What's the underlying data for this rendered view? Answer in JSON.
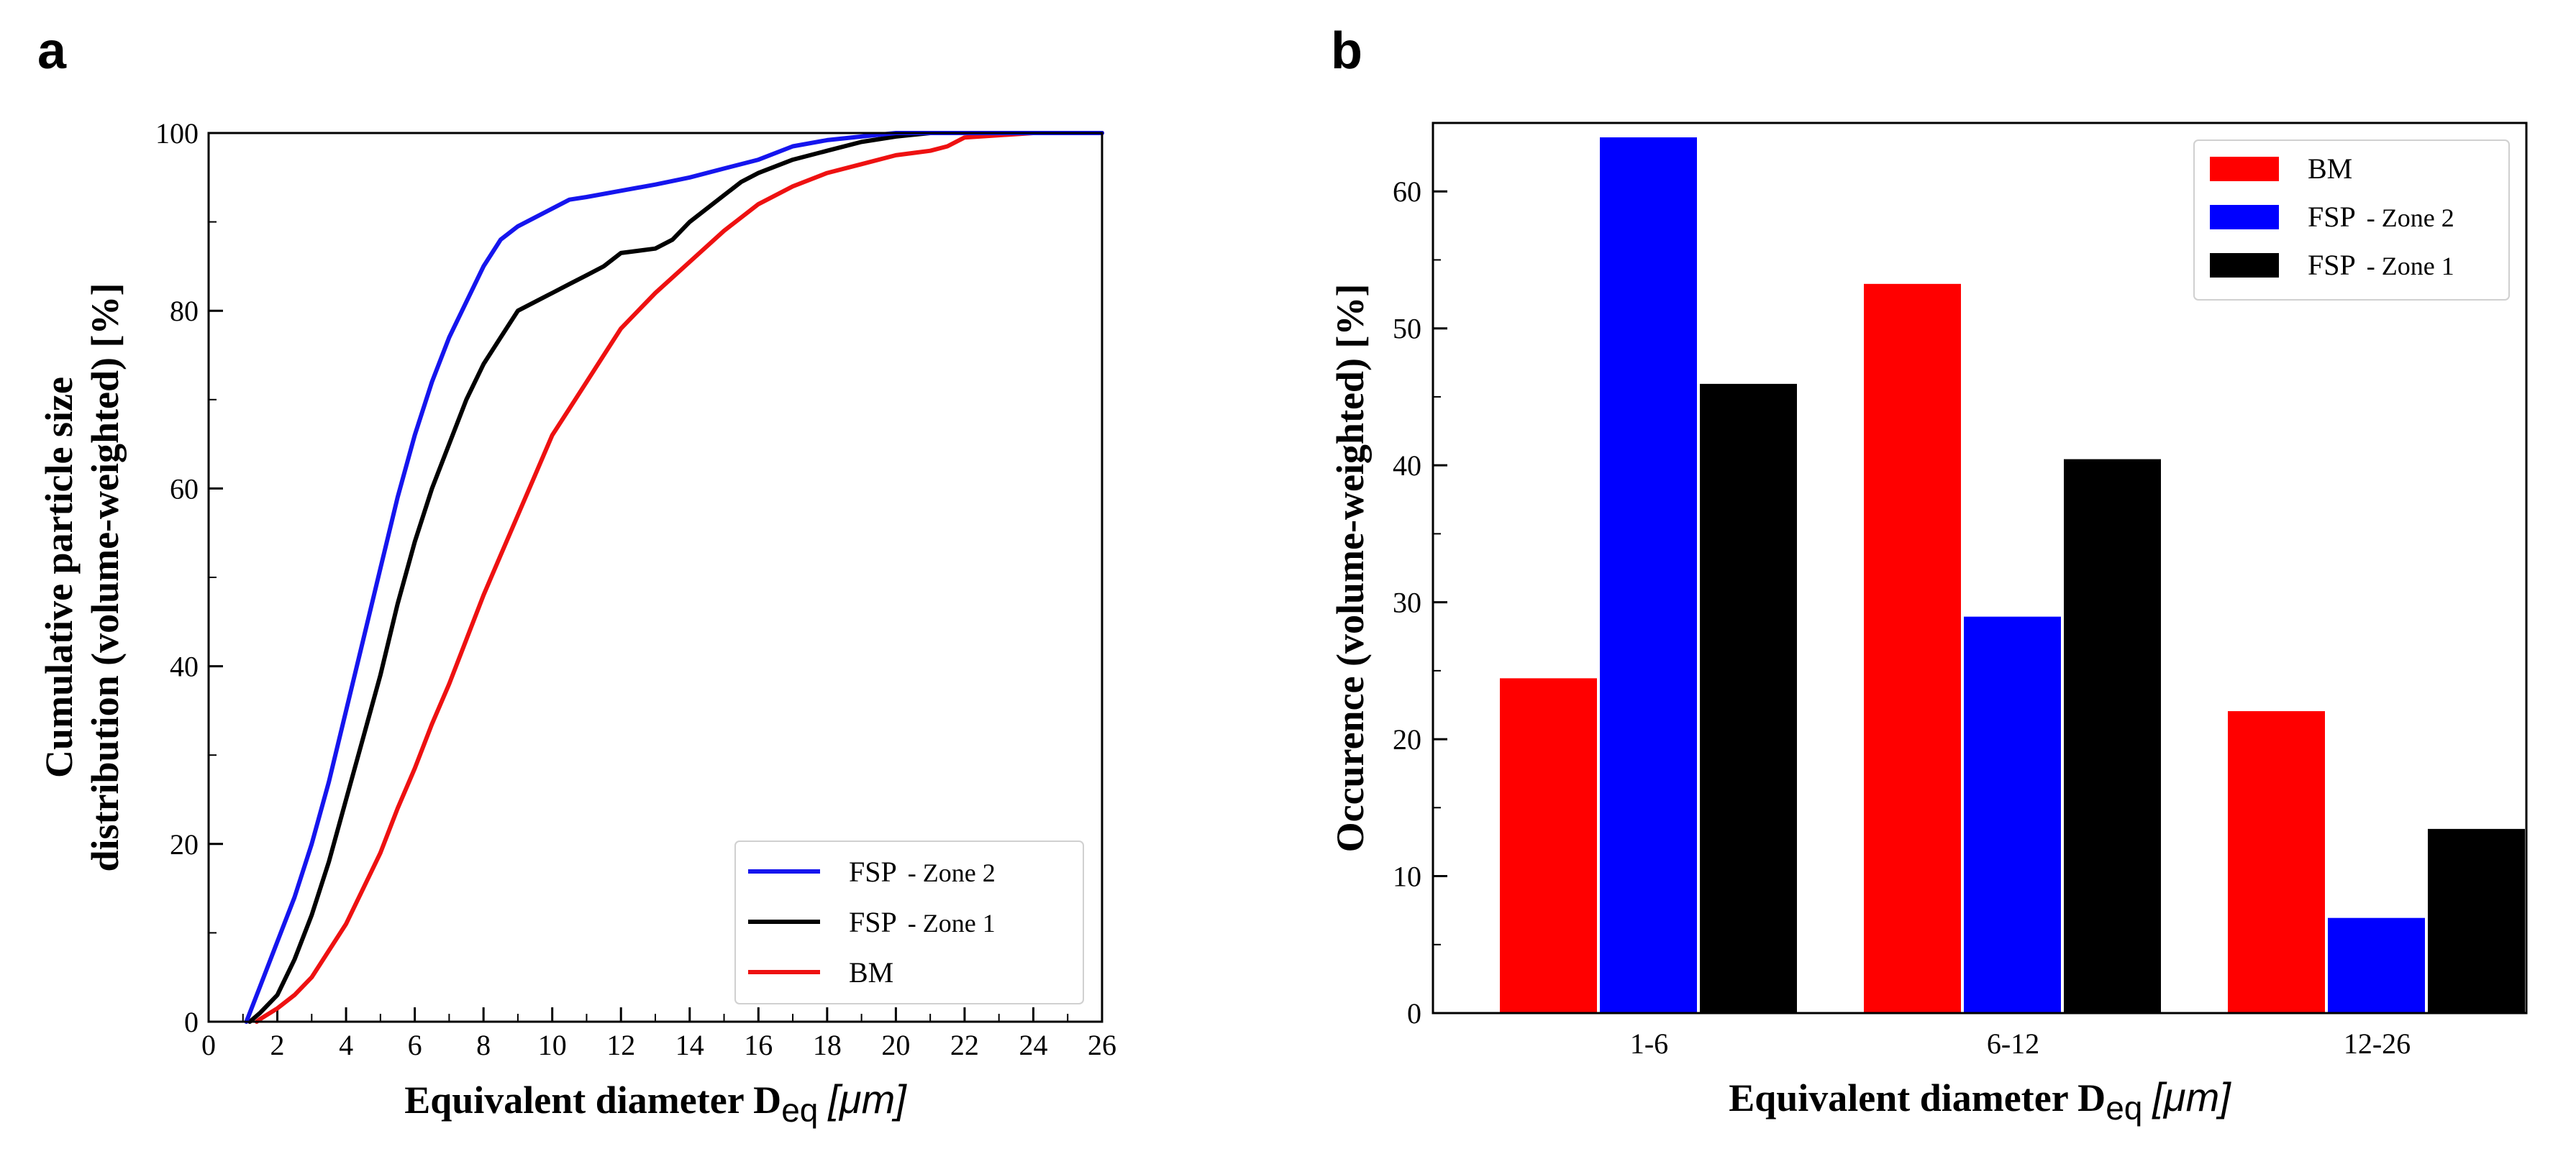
{
  "panel_a_label": "a",
  "panel_b_label": "b",
  "chart_data": [
    {
      "type": "line",
      "ylabel_line1": "Cumulative particle size",
      "ylabel_line2": "distribution (volume-weighted) [%]",
      "xlabel_main": "Equivalent diameter D",
      "xlabel_sub": "eq",
      "xlabel_unit": "[μm]",
      "xlim": [
        0,
        26
      ],
      "ylim": [
        0,
        100
      ],
      "x_ticks": [
        0,
        2,
        4,
        6,
        8,
        10,
        12,
        14,
        16,
        18,
        20,
        22,
        24,
        26
      ],
      "y_ticks": [
        0,
        20,
        40,
        60,
        80,
        100
      ],
      "legend_position": "bottom-right",
      "series": [
        {
          "name": "FSP",
          "name_suffix": " - Zone 2",
          "color": "#1515ee",
          "x": [
            1.1,
            1.5,
            2,
            2.5,
            3,
            3.5,
            4,
            4.5,
            5,
            5.5,
            6,
            6.5,
            7,
            7.5,
            8,
            8.5,
            9,
            9.5,
            10,
            10.5,
            11,
            12,
            13,
            14,
            15,
            16,
            17,
            18,
            19,
            20,
            22,
            26
          ],
          "y": [
            0,
            4,
            9,
            14,
            20,
            27,
            35,
            43,
            51,
            59,
            66,
            72,
            77,
            81,
            85,
            88,
            89.5,
            90.5,
            91.5,
            92.5,
            92.8,
            93.5,
            94.2,
            95,
            96,
            97,
            98.5,
            99.2,
            99.6,
            100,
            100,
            100
          ]
        },
        {
          "name": "FSP",
          "name_suffix": " - Zone 1",
          "color": "#000000",
          "x": [
            1.2,
            1.5,
            2,
            2.5,
            3,
            3.5,
            4,
            4.5,
            5,
            5.5,
            6,
            6.5,
            7,
            7.5,
            8,
            8.5,
            9,
            9.5,
            10,
            10.5,
            11,
            11.5,
            12,
            13,
            13.5,
            14,
            15,
            15.5,
            16,
            17,
            18,
            19,
            20,
            21,
            22,
            26
          ],
          "y": [
            0,
            1,
            3,
            7,
            12,
            18,
            25,
            32,
            39,
            47,
            54,
            60,
            65,
            70,
            74,
            77,
            80,
            81,
            82,
            83,
            84,
            85,
            86.5,
            87,
            88,
            90,
            93,
            94.5,
            95.5,
            97,
            98,
            99,
            99.6,
            100,
            100,
            100
          ]
        },
        {
          "name": "BM",
          "name_suffix": "",
          "color": "#ee1111",
          "x": [
            1.4,
            1.5,
            2,
            2.5,
            3,
            3.5,
            4,
            4.5,
            5,
            5.5,
            6,
            6.5,
            7,
            7.5,
            8,
            8.5,
            9,
            9.5,
            10,
            10.5,
            11,
            11.5,
            12,
            12.5,
            13,
            14,
            15,
            16,
            17,
            18,
            19,
            20,
            21,
            21.5,
            22,
            24,
            26
          ],
          "y": [
            0,
            0.3,
            1.5,
            3,
            5,
            8,
            11,
            15,
            19,
            24,
            28.5,
            33.5,
            38,
            43,
            48,
            52.5,
            57,
            61.5,
            66,
            69,
            72,
            75,
            78,
            80,
            82,
            85.5,
            89,
            92,
            94,
            95.5,
            96.5,
            97.5,
            98,
            98.5,
            99.5,
            100,
            100
          ]
        }
      ]
    },
    {
      "type": "bar",
      "ylabel": "Occurence (volume-weighted) [%]",
      "xlabel_main": "Equivalent diameter D",
      "xlabel_sub": "eq",
      "xlabel_unit": "[μm]",
      "categories": [
        "1-6",
        "6-12",
        "12-26"
      ],
      "ylim": [
        0,
        65
      ],
      "y_ticks": [
        0,
        10,
        20,
        30,
        40,
        50,
        60
      ],
      "legend_position": "top-right",
      "series": [
        {
          "name": "BM",
          "name_suffix": "",
          "color": "#ff0000",
          "values": [
            24.5,
            53.3,
            22.1
          ]
        },
        {
          "name": "FSP",
          "name_suffix": " - Zone 2",
          "color": "#0000ff",
          "values": [
            64.0,
            29.0,
            7.0
          ]
        },
        {
          "name": "FSP",
          "name_suffix": " - Zone 1",
          "color": "#000000",
          "values": [
            46.0,
            40.5,
            13.5
          ]
        }
      ]
    }
  ]
}
